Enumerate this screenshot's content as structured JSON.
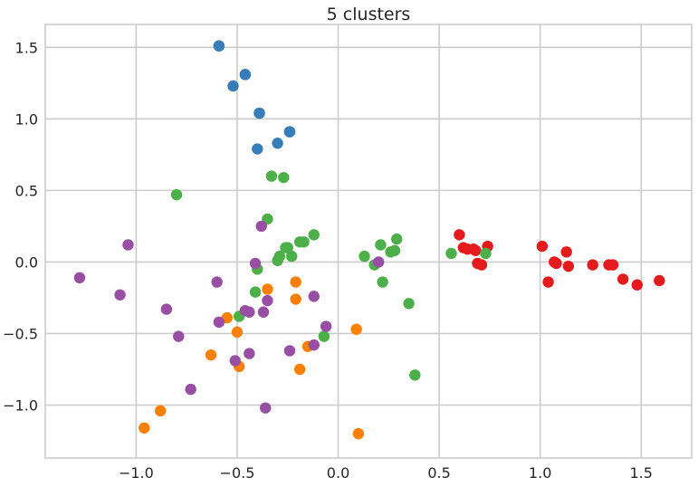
{
  "chart_data": {
    "type": "scatter",
    "title": "5 clusters",
    "xlabel": "",
    "ylabel": "",
    "xlim": [
      -1.45,
      1.75
    ],
    "ylim": [
      -1.37,
      1.66
    ],
    "grid": true,
    "legend": "none",
    "xticks": [
      -1.0,
      -0.5,
      0.0,
      0.5,
      1.0,
      1.5
    ],
    "yticks": [
      -1.0,
      -0.5,
      0.0,
      0.5,
      1.0,
      1.5
    ],
    "xtick_labels": [
      "−1.0",
      "−0.5",
      "0.0",
      "0.5",
      "1.0",
      "1.5"
    ],
    "ytick_labels": [
      "−1.0",
      "−0.5",
      "0.0",
      "0.5",
      "1.0",
      "1.5"
    ],
    "series": [
      {
        "color": "#e41a1c",
        "points": [
          [
            0.6,
            0.19
          ],
          [
            0.62,
            0.1
          ],
          [
            0.64,
            0.09
          ],
          [
            0.67,
            0.09
          ],
          [
            0.68,
            0.08
          ],
          [
            0.69,
            -0.01
          ],
          [
            0.71,
            -0.02
          ],
          [
            0.74,
            0.11
          ],
          [
            1.01,
            0.11
          ],
          [
            1.04,
            -0.14
          ],
          [
            1.07,
            0.0
          ],
          [
            1.08,
            -0.01
          ],
          [
            1.13,
            0.07
          ],
          [
            1.14,
            -0.03
          ],
          [
            1.26,
            -0.02
          ],
          [
            1.34,
            -0.02
          ],
          [
            1.36,
            -0.02
          ],
          [
            1.41,
            -0.12
          ],
          [
            1.48,
            -0.16
          ],
          [
            1.59,
            -0.13
          ]
        ]
      },
      {
        "color": "#377eb8",
        "points": [
          [
            -0.59,
            1.51
          ],
          [
            -0.59,
            1.51
          ],
          [
            -0.52,
            1.23
          ],
          [
            -0.46,
            1.31
          ],
          [
            -0.46,
            1.31
          ],
          [
            -0.39,
            1.04
          ],
          [
            -0.39,
            1.04
          ],
          [
            -0.4,
            0.79
          ],
          [
            -0.3,
            0.83
          ],
          [
            -0.24,
            0.91
          ],
          [
            -0.24,
            0.91
          ]
        ]
      },
      {
        "color": "#4daf4a",
        "points": [
          [
            -0.8,
            0.47
          ],
          [
            -0.33,
            0.6
          ],
          [
            -0.27,
            0.59
          ],
          [
            -0.35,
            0.3
          ],
          [
            -0.4,
            -0.05
          ],
          [
            -0.41,
            -0.21
          ],
          [
            -0.49,
            -0.38
          ],
          [
            -0.3,
            0.01
          ],
          [
            -0.29,
            0.04
          ],
          [
            -0.26,
            0.1
          ],
          [
            -0.25,
            0.1
          ],
          [
            -0.23,
            0.04
          ],
          [
            -0.19,
            0.14
          ],
          [
            -0.17,
            0.14
          ],
          [
            -0.12,
            0.19
          ],
          [
            -0.07,
            -0.52
          ],
          [
            0.13,
            0.04
          ],
          [
            0.18,
            -0.02
          ],
          [
            0.21,
            0.12
          ],
          [
            0.22,
            -0.14
          ],
          [
            0.26,
            0.07
          ],
          [
            0.28,
            0.08
          ],
          [
            0.29,
            0.16
          ],
          [
            0.35,
            -0.29
          ],
          [
            0.38,
            -0.79
          ],
          [
            0.56,
            0.06
          ],
          [
            0.73,
            0.06
          ]
        ]
      },
      {
        "color": "#ff7f00",
        "points": [
          [
            -0.96,
            -1.16
          ],
          [
            -0.88,
            -1.04
          ],
          [
            -0.63,
            -0.65
          ],
          [
            -0.55,
            -0.39
          ],
          [
            -0.5,
            -0.49
          ],
          [
            -0.49,
            -0.73
          ],
          [
            -0.35,
            -0.19
          ],
          [
            -0.21,
            -0.14
          ],
          [
            -0.21,
            -0.26
          ],
          [
            -0.19,
            -0.75
          ],
          [
            -0.15,
            -0.59
          ],
          [
            0.09,
            -0.47
          ],
          [
            0.1,
            -1.2
          ]
        ]
      },
      {
        "color": "#984ea3",
        "points": [
          [
            -1.28,
            -0.11
          ],
          [
            -1.08,
            -0.23
          ],
          [
            -1.04,
            0.12
          ],
          [
            -0.85,
            -0.33
          ],
          [
            -0.79,
            -0.52
          ],
          [
            -0.73,
            -0.89
          ],
          [
            -0.6,
            -0.14
          ],
          [
            -0.59,
            -0.42
          ],
          [
            -0.51,
            -0.69
          ],
          [
            -0.46,
            -0.34
          ],
          [
            -0.44,
            -0.35
          ],
          [
            -0.44,
            -0.64
          ],
          [
            -0.41,
            -0.01
          ],
          [
            -0.38,
            0.25
          ],
          [
            -0.37,
            -0.35
          ],
          [
            -0.36,
            -1.02
          ],
          [
            -0.35,
            -0.27
          ],
          [
            -0.24,
            -0.62
          ],
          [
            -0.12,
            -0.24
          ],
          [
            -0.12,
            -0.58
          ],
          [
            -0.06,
            -0.45
          ],
          [
            0.2,
            0.0
          ]
        ]
      }
    ]
  }
}
